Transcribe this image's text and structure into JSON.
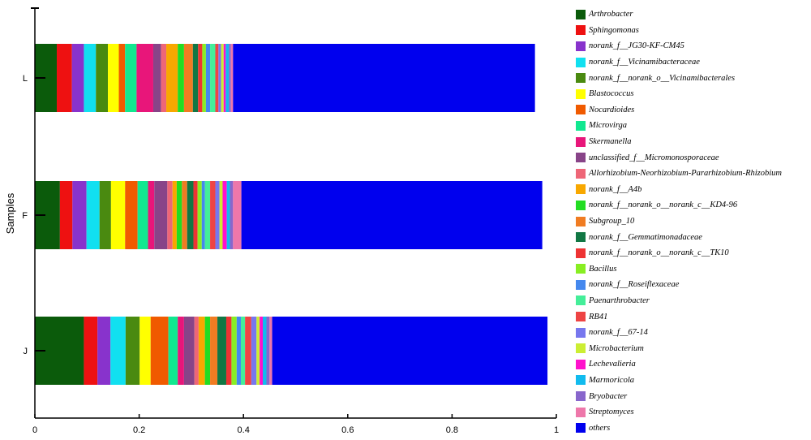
{
  "chart_data": {
    "type": "bar",
    "orientation": "horizontal",
    "stacked": true,
    "ylabel": "Samples",
    "xlabel": "",
    "xlim": [
      0,
      1
    ],
    "xticks": [
      "0",
      "0.2",
      "0.4",
      "0.6",
      "0.8",
      "1"
    ],
    "xtick_values": [
      0,
      0.2,
      0.4,
      0.6,
      0.8,
      1
    ],
    "categories": [
      "L",
      "F",
      "J"
    ],
    "legend_position": "right",
    "grid": false,
    "series": [
      {
        "name": "Arthrobacter",
        "color": "#0b5b0b",
        "values": [
          0.042,
          0.048,
          0.094
        ]
      },
      {
        "name": "Sphingomonas",
        "color": "#ee1111",
        "values": [
          0.029,
          0.024,
          0.026
        ]
      },
      {
        "name": "norank_f__JG30-KF-CM45",
        "color": "#8833cc",
        "values": [
          0.023,
          0.027,
          0.025
        ]
      },
      {
        "name": "norank_f__Vicinamibacteraceae",
        "color": "#11e0f0",
        "values": [
          0.023,
          0.025,
          0.029
        ]
      },
      {
        "name": "norank_f__norank_o__Vicinamibacterales",
        "color": "#4a8a10",
        "values": [
          0.023,
          0.022,
          0.027
        ]
      },
      {
        "name": "Blastococcus",
        "color": "#ffff00",
        "values": [
          0.021,
          0.027,
          0.021
        ]
      },
      {
        "name": "Nocardioides",
        "color": "#f05a00",
        "values": [
          0.012,
          0.024,
          0.034
        ]
      },
      {
        "name": "Microvirga",
        "color": "#11e890",
        "values": [
          0.022,
          0.02,
          0.018
        ]
      },
      {
        "name": "Skermanella",
        "color": "#e8167a",
        "values": [
          0.032,
          0.012,
          0.012
        ]
      },
      {
        "name": "unclassified_f__Micromonosporaceae",
        "color": "#884488",
        "values": [
          0.015,
          0.025,
          0.02
        ]
      },
      {
        "name": "Allorhizobium-Neorhizobium-Pararhizobium-Rhizobium",
        "color": "#ee6677",
        "values": [
          0.01,
          0.01,
          0.008
        ]
      },
      {
        "name": "norank_f__A4b",
        "color": "#f8a800",
        "values": [
          0.022,
          0.008,
          0.012
        ]
      },
      {
        "name": "norank_f__norank_o__norank_c__KD4-96",
        "color": "#22dd22",
        "values": [
          0.012,
          0.01,
          0.01
        ]
      },
      {
        "name": "Subgroup_10",
        "color": "#f07c22",
        "values": [
          0.017,
          0.01,
          0.014
        ]
      },
      {
        "name": "norank_f__Gemmatimonadaceae",
        "color": "#117744",
        "values": [
          0.01,
          0.012,
          0.017
        ]
      },
      {
        "name": "norank_f__norank_o__norank_c__TK10",
        "color": "#ee3333",
        "values": [
          0.008,
          0.008,
          0.01
        ]
      },
      {
        "name": "Bacillus",
        "color": "#88ee22",
        "values": [
          0.007,
          0.008,
          0.01
        ]
      },
      {
        "name": "norank_f__Roseiflexaceae",
        "color": "#4488ee",
        "values": [
          0.008,
          0.006,
          0.008
        ]
      },
      {
        "name": "Paenarthrobacter",
        "color": "#44ee99",
        "values": [
          0.01,
          0.01,
          0.008
        ]
      },
      {
        "name": "RB41",
        "color": "#ee4444",
        "values": [
          0.006,
          0.01,
          0.012
        ]
      },
      {
        "name": "norank_f__67-14",
        "color": "#7777ee",
        "values": [
          0.005,
          0.008,
          0.01
        ]
      },
      {
        "name": "Microbacterium",
        "color": "#ccee33",
        "values": [
          0.005,
          0.006,
          0.006
        ]
      },
      {
        "name": "Lechevalieria",
        "color": "#ff11cc",
        "values": [
          0.004,
          0.008,
          0.006
        ]
      },
      {
        "name": "Marmoricola",
        "color": "#11bbee",
        "values": [
          0.006,
          0.006,
          0.007
        ]
      },
      {
        "name": "Bryobacter",
        "color": "#8866cc",
        "values": [
          0.004,
          0.006,
          0.006
        ]
      },
      {
        "name": "Streptomyces",
        "color": "#ee77aa",
        "values": [
          0.004,
          0.016,
          0.005
        ]
      },
      {
        "name": "others",
        "color": "#0000ee",
        "values": [
          0.579,
          0.577,
          0.528
        ]
      }
    ]
  }
}
